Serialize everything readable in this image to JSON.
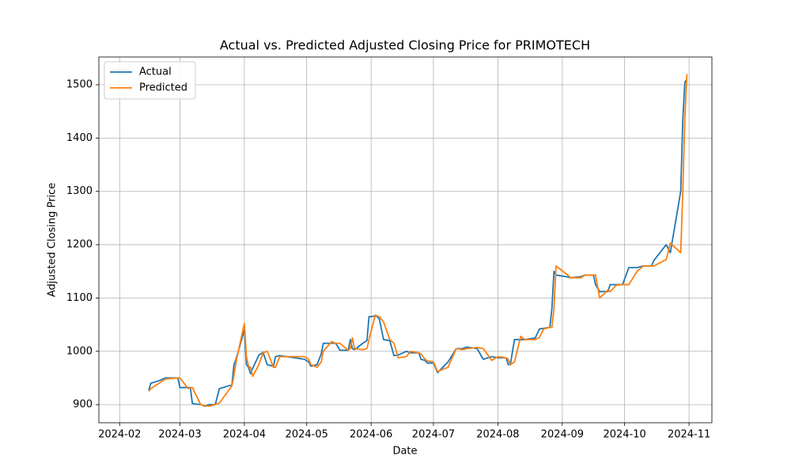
{
  "chart_data": {
    "type": "line",
    "title": "Actual vs. Predicted Adjusted Closing Price for PRIMOTECH",
    "x_label": "Date",
    "y_label": "Adjusted Closing Price",
    "grid": true,
    "legend": "upper left",
    "xlim": [
      "2024-01-22",
      "2024-11-12"
    ],
    "ylim": [
      866,
      1552
    ],
    "xticks": [
      {
        "value": "2024-02-01",
        "label": "2024-02"
      },
      {
        "value": "2024-03-01",
        "label": "2024-03"
      },
      {
        "value": "2024-04-01",
        "label": "2024-04"
      },
      {
        "value": "2024-05-01",
        "label": "2024-05"
      },
      {
        "value": "2024-06-01",
        "label": "2024-06"
      },
      {
        "value": "2024-07-01",
        "label": "2024-07"
      },
      {
        "value": "2024-08-01",
        "label": "2024-08"
      },
      {
        "value": "2024-09-01",
        "label": "2024-09"
      },
      {
        "value": "2024-10-01",
        "label": "2024-10"
      },
      {
        "value": "2024-11-01",
        "label": "2024-11"
      }
    ],
    "yticks": [
      900,
      1000,
      1100,
      1200,
      1300,
      1400,
      1500
    ],
    "x": [
      "2024-02-15",
      "2024-02-16",
      "2024-02-20",
      "2024-02-23",
      "2024-02-29",
      "2024-03-01",
      "2024-03-05",
      "2024-03-06",
      "2024-03-07",
      "2024-03-11",
      "2024-03-13",
      "2024-03-15",
      "2024-03-18",
      "2024-03-20",
      "2024-03-26",
      "2024-03-27",
      "2024-03-28",
      "2024-04-01",
      "2024-04-02",
      "2024-04-03",
      "2024-04-04",
      "2024-04-05",
      "2024-04-08",
      "2024-04-10",
      "2024-04-12",
      "2024-04-15",
      "2024-04-16",
      "2024-04-18",
      "2024-04-30",
      "2024-05-02",
      "2024-05-03",
      "2024-05-06",
      "2024-05-08",
      "2024-05-09",
      "2024-05-13",
      "2024-05-15",
      "2024-05-17",
      "2024-05-21",
      "2024-05-22",
      "2024-05-23",
      "2024-05-24",
      "2024-05-28",
      "2024-05-30",
      "2024-05-31",
      "2024-06-03",
      "2024-06-04",
      "2024-06-05",
      "2024-06-07",
      "2024-06-10",
      "2024-06-12",
      "2024-06-14",
      "2024-06-18",
      "2024-06-20",
      "2024-06-24",
      "2024-06-25",
      "2024-06-27",
      "2024-06-28",
      "2024-07-01",
      "2024-07-03",
      "2024-07-08",
      "2024-07-12",
      "2024-07-15",
      "2024-07-17",
      "2024-07-22",
      "2024-07-25",
      "2024-07-29",
      "2024-08-01",
      "2024-08-05",
      "2024-08-06",
      "2024-08-07",
      "2024-08-09",
      "2024-08-12",
      "2024-08-14",
      "2024-08-19",
      "2024-08-21",
      "2024-08-23",
      "2024-08-26",
      "2024-08-27",
      "2024-08-28",
      "2024-08-29",
      "2024-09-03",
      "2024-09-05",
      "2024-09-10",
      "2024-09-12",
      "2024-09-16",
      "2024-09-17",
      "2024-09-19",
      "2024-09-23",
      "2024-09-24",
      "2024-09-27",
      "2024-09-30",
      "2024-10-03",
      "2024-10-07",
      "2024-10-10",
      "2024-10-14",
      "2024-10-15",
      "2024-10-21",
      "2024-10-23",
      "2024-10-28",
      "2024-10-29",
      "2024-10-30",
      "2024-10-31"
    ],
    "series": [
      {
        "name": "Actual",
        "color": "#1f77b4",
        "values": [
          927,
          940,
          945,
          950,
          950,
          932,
          932,
          932,
          902,
          900,
          897,
          900,
          900,
          930,
          937,
          975,
          985,
          1040,
          975,
          970,
          958,
          968,
          993,
          998,
          975,
          972,
          990,
          992,
          985,
          980,
          972,
          975,
          995,
          1015,
          1015,
          1015,
          1002,
          1002,
          1022,
          1005,
          1003,
          1015,
          1020,
          1065,
          1066,
          1065,
          1060,
          1022,
          1020,
          992,
          993,
          1000,
          997,
          997,
          985,
          983,
          978,
          978,
          960,
          980,
          1005,
          1005,
          1008,
          1005,
          985,
          990,
          988,
          988,
          975,
          975,
          1022,
          1022,
          1022,
          1025,
          1042,
          1043,
          1045,
          1080,
          1150,
          1143,
          1140,
          1138,
          1140,
          1143,
          1143,
          1125,
          1112,
          1112,
          1125,
          1125,
          1125,
          1157,
          1157,
          1160,
          1160,
          1170,
          1200,
          1185,
          1300,
          1435,
          1505,
          1510
        ]
      },
      {
        "name": "Predicted",
        "color": "#ff7f0e",
        "values": [
          925,
          930,
          940,
          948,
          950,
          950,
          930,
          932,
          932,
          900,
          898,
          897,
          900,
          903,
          935,
          955,
          980,
          1052,
          990,
          972,
          970,
          953,
          975,
          997,
          1000,
          970,
          970,
          990,
          990,
          985,
          975,
          970,
          980,
          1000,
          1018,
          1015,
          1015,
          1002,
          1005,
          1025,
          1005,
          1003,
          1005,
          1022,
          1068,
          1066,
          1065,
          1055,
          1022,
          1015,
          988,
          990,
          1000,
          997,
          995,
          985,
          982,
          980,
          962,
          970,
          1005,
          1003,
          1005,
          1007,
          1005,
          983,
          990,
          988,
          985,
          975,
          980,
          1028,
          1022,
          1022,
          1026,
          1042,
          1045,
          1045,
          1080,
          1160,
          1145,
          1138,
          1138,
          1143,
          1143,
          1143,
          1100,
          1115,
          1112,
          1124,
          1125,
          1125,
          1150,
          1160,
          1160,
          1160,
          1172,
          1203,
          1185,
          1300,
          1440,
          1520
        ]
      }
    ]
  }
}
